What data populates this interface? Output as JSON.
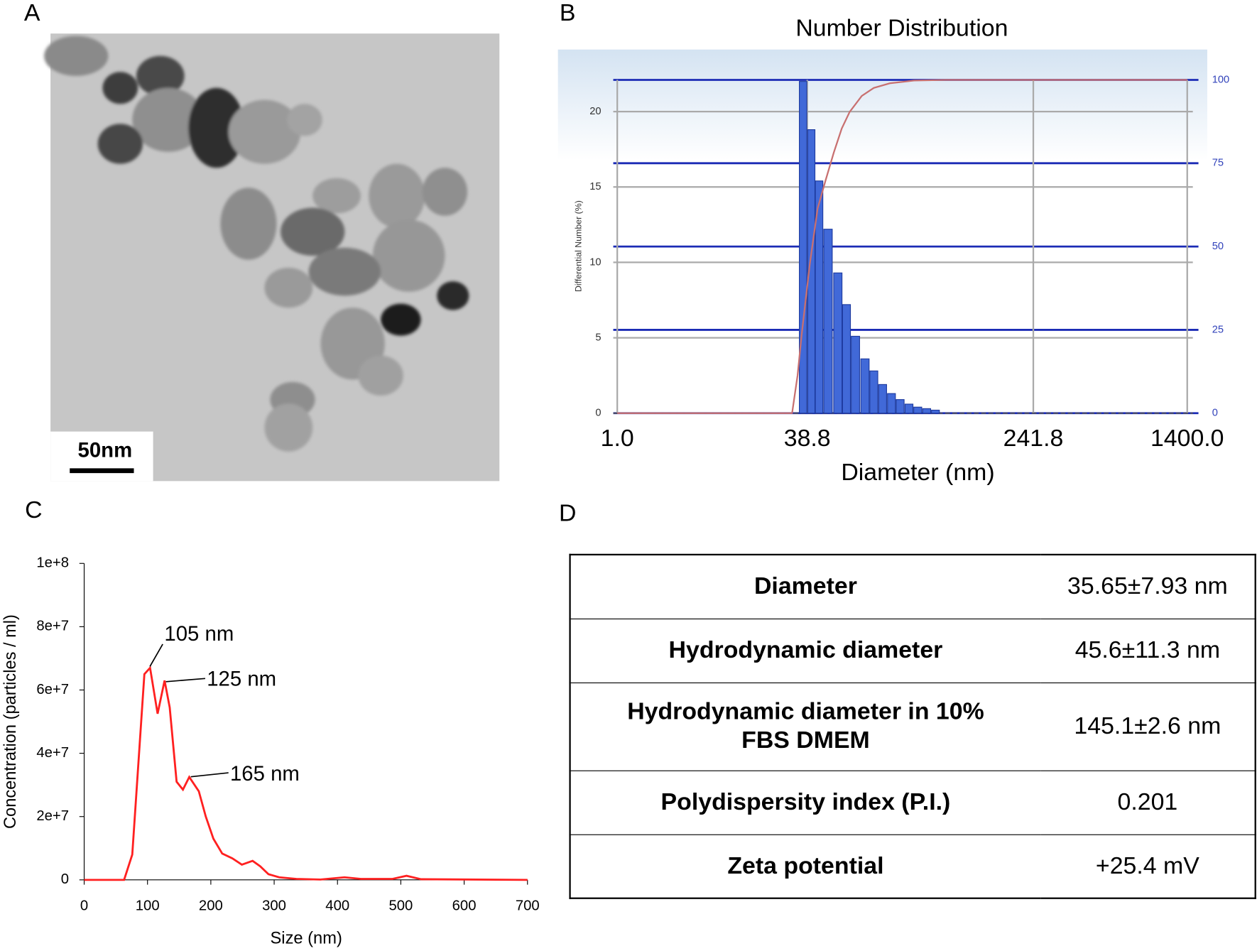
{
  "panels": [
    "A",
    "B",
    "C",
    "D"
  ],
  "image": {
    "scale_bar": "50nm"
  },
  "chart_data": [
    {
      "type": "bar",
      "title": "Number Distribution",
      "xlabel": "Diameter (nm)",
      "ylabel": "Differential Number (%)",
      "xscale": "log",
      "xlim": [
        1,
        1400
      ],
      "xticks": [
        {
          "value": 1,
          "label": "1.0"
        },
        38.8,
        241.8,
        {
          "value": 1400,
          "label": "1400.0"
        }
      ],
      "ylim": [
        0,
        22.1
      ],
      "yticks": [
        0,
        5,
        10,
        15,
        20
      ],
      "y2lim": [
        0,
        100
      ],
      "y2ticks": [
        0,
        25,
        50,
        75,
        100
      ],
      "grid": true,
      "series": [
        {
          "color": "#4169d8",
          "x": [
            35.8,
            40.1,
            42.7,
            45.9,
            49.7,
            53.3,
            57.3,
            61.9,
            66.5,
            71.4,
            76.7,
            82.3,
            88.4,
            94.9,
            102.0,
            109.5
          ],
          "values": [
            22.0,
            18.8,
            15.4,
            12.2,
            9.3,
            7.2,
            5.1,
            3.6,
            2.8,
            1.9,
            1.3,
            0.9,
            0.6,
            0.4,
            0.3,
            0.2
          ]
        },
        {
          "color": "#c87070",
          "axis": "y2",
          "x": [
            1,
            29.0,
            32.2,
            34.8,
            39.6,
            42.2,
            45.0,
            48.1,
            51.3,
            54.7,
            60.3,
            66.5,
            75.7,
            92.0,
            119.2,
            1400
          ],
          "values": [
            0,
            0,
            11.3,
            23.5,
            44.6,
            61.4,
            69.8,
            78.2,
            85.4,
            90.4,
            95.2,
            97.6,
            99.0,
            99.8,
            100,
            100
          ]
        }
      ]
    },
    {
      "type": "line",
      "xlabel": "Size (nm)",
      "ylabel": "Concentration (particles / ml)",
      "xlim": [
        0,
        700
      ],
      "xticks": [
        0,
        100,
        200,
        300,
        400,
        500,
        600,
        700
      ],
      "ylim": [
        0,
        100000000
      ],
      "yticks": [
        0,
        {
          "value": 20000000,
          "label": "2e+7"
        },
        {
          "value": 40000000,
          "label": "4e+7"
        },
        {
          "value": 60000000,
          "label": "6e+7"
        },
        {
          "value": 80000000,
          "label": "8e+7"
        },
        {
          "value": 100000000,
          "label": "1e+8"
        }
      ],
      "x": [
        0,
        60,
        63,
        76,
        95,
        104,
        116,
        127,
        135,
        146,
        156,
        166,
        181,
        192,
        204,
        218,
        234,
        249,
        266,
        278,
        291,
        308,
        335,
        373,
        411,
        437,
        487,
        509,
        532,
        700
      ],
      "values": [
        0,
        0,
        0,
        8000000,
        65000000,
        67000000,
        52500000,
        63000000,
        54500000,
        31000000,
        28500000,
        32500000,
        28000000,
        20000000,
        13000000,
        8300000,
        6800000,
        4800000,
        6000000,
        4300000,
        1800000,
        800000,
        300000,
        100000,
        800000,
        300000,
        300000,
        1300000,
        200000,
        0
      ],
      "color": "#ff2020",
      "annotations": [
        "105 nm",
        "125 nm",
        "165 nm"
      ]
    }
  ],
  "table": {
    "rows": [
      [
        "Diameter",
        "35.65±7.93 nm"
      ],
      [
        "Hydrodynamic diameter",
        "45.6±11.3 nm"
      ],
      [
        "Hydrodynamic diameter in 10% FBS DMEM",
        "145.1±2.6 nm"
      ],
      [
        "Polydispersity index (P.I.)",
        "0.201"
      ],
      [
        "Zeta potential",
        "+25.4 mV"
      ]
    ]
  }
}
